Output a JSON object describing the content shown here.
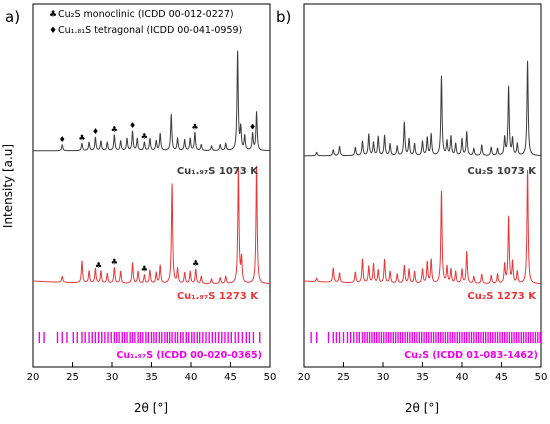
{
  "figure": {
    "ylabel": "Intensity [a.u]",
    "panel_a_label": "a)",
    "panel_b_label": "b)",
    "legend": [
      {
        "symbol": "♣",
        "text": "Cu₂S monoclinic (ICDD 00-012-0227)"
      },
      {
        "symbol": "♦",
        "text": "Cu₁.₈₁S tetragonal (ICDD 00-041-0959)"
      }
    ]
  },
  "colors": {
    "gray": "#3c3c3c",
    "red": "#e8373a",
    "magenta": "#ee00ee",
    "axis": "#000000"
  },
  "chart_data": [
    {
      "type": "line",
      "panel": "a",
      "xlabel": "2θ [°]",
      "ylabel": "Intensity [a.u]",
      "xlim": [
        20,
        50
      ],
      "xticks": [
        20,
        25,
        30,
        35,
        40,
        45,
        50
      ],
      "grid": false,
      "series": [
        {
          "name": "Cu₁.₉₇S 1073 K",
          "color": "#3c3c3c",
          "peaks": [
            [
              23.7,
              0.05
            ],
            [
              26.2,
              0.06
            ],
            [
              27.1,
              0.07
            ],
            [
              27.9,
              0.11
            ],
            [
              28.6,
              0.08
            ],
            [
              29.4,
              0.07
            ],
            [
              30.3,
              0.13
            ],
            [
              31.1,
              0.08
            ],
            [
              31.9,
              0.1
            ],
            [
              32.6,
              0.16
            ],
            [
              33.2,
              0.1
            ],
            [
              34.1,
              0.07
            ],
            [
              34.8,
              0.1
            ],
            [
              35.6,
              0.08
            ],
            [
              36.1,
              0.14
            ],
            [
              37.5,
              0.3
            ],
            [
              38.3,
              0.1
            ],
            [
              39.2,
              0.09
            ],
            [
              39.9,
              0.1
            ],
            [
              40.5,
              0.15
            ],
            [
              41.3,
              0.05
            ],
            [
              42.6,
              0.04
            ],
            [
              43.7,
              0.05
            ],
            [
              44.4,
              0.06
            ],
            [
              45.9,
              0.82
            ],
            [
              46.3,
              0.18
            ],
            [
              46.8,
              0.12
            ],
            [
              47.8,
              0.14
            ],
            [
              48.3,
              0.32
            ]
          ]
        },
        {
          "name": "Cu₁.₉₇S 1273 K",
          "color": "#e8373a",
          "peaks": [
            [
              23.7,
              0.05
            ],
            [
              26.2,
              0.18
            ],
            [
              27.1,
              0.1
            ],
            [
              27.9,
              0.12
            ],
            [
              28.6,
              0.1
            ],
            [
              29.4,
              0.08
            ],
            [
              30.3,
              0.13
            ],
            [
              31.1,
              0.1
            ],
            [
              32.6,
              0.17
            ],
            [
              33.3,
              0.1
            ],
            [
              34.1,
              0.07
            ],
            [
              34.8,
              0.11
            ],
            [
              35.6,
              0.09
            ],
            [
              36.1,
              0.15
            ],
            [
              37.6,
              0.83
            ],
            [
              38.3,
              0.12
            ],
            [
              39.2,
              0.09
            ],
            [
              39.9,
              0.1
            ],
            [
              40.6,
              0.12
            ],
            [
              41.3,
              0.06
            ],
            [
              42.6,
              0.04
            ],
            [
              43.7,
              0.05
            ],
            [
              44.4,
              0.06
            ],
            [
              46.0,
              0.96
            ],
            [
              46.4,
              0.2
            ],
            [
              48.3,
              0.98
            ]
          ]
        }
      ],
      "reference": {
        "name": "Cu₁.₉₇S (ICDD 00-020-0365)",
        "color": "#ee00ee",
        "positions": [
          20.8,
          21.4,
          23.1,
          23.7,
          24.3,
          25.1,
          25.6,
          26.2,
          26.6,
          27.1,
          27.5,
          27.9,
          28.3,
          28.7,
          29.1,
          29.5,
          29.9,
          30.3,
          30.6,
          30.9,
          31.3,
          31.6,
          31.9,
          32.3,
          32.6,
          32.9,
          33.3,
          33.6,
          33.9,
          34.3,
          34.6,
          35.0,
          35.3,
          35.6,
          36.0,
          36.3,
          36.7,
          37.0,
          37.3,
          37.6,
          38.0,
          38.3,
          38.7,
          39.0,
          39.4,
          39.7,
          40.1,
          40.4,
          40.8,
          41.1,
          41.5,
          41.9,
          42.3,
          42.7,
          43.1,
          43.5,
          43.9,
          44.3,
          44.7,
          45.1,
          45.6,
          46.0,
          46.5,
          47.0,
          47.4,
          47.9,
          48.7
        ]
      },
      "markers": [
        {
          "symbol": "♦",
          "x": 23.7,
          "series": 0
        },
        {
          "symbol": "♣",
          "x": 26.2,
          "series": 0
        },
        {
          "symbol": "♦",
          "x": 27.9,
          "series": 0
        },
        {
          "symbol": "♣",
          "x": 30.3,
          "series": 0
        },
        {
          "symbol": "♦",
          "x": 32.6,
          "series": 0
        },
        {
          "symbol": "♣",
          "x": 34.1,
          "series": 0
        },
        {
          "symbol": "♣",
          "x": 40.5,
          "series": 0
        },
        {
          "symbol": "♦",
          "x": 47.8,
          "series": 0
        },
        {
          "symbol": "♣",
          "x": 28.3,
          "series": 1
        },
        {
          "symbol": "♣",
          "x": 30.3,
          "series": 1
        },
        {
          "symbol": "♣",
          "x": 34.1,
          "series": 1
        },
        {
          "symbol": "♣",
          "x": 40.6,
          "series": 1
        }
      ]
    },
    {
      "type": "line",
      "panel": "b",
      "xlabel": "2θ [°]",
      "xlim": [
        20,
        50
      ],
      "xticks": [
        20,
        25,
        30,
        35,
        40,
        45,
        50
      ],
      "grid": false,
      "series": [
        {
          "name": "Cu₂S 1073 K",
          "color": "#3c3c3c",
          "peaks": [
            [
              21.6,
              0.03
            ],
            [
              23.7,
              0.05
            ],
            [
              24.5,
              0.08
            ],
            [
              26.5,
              0.07
            ],
            [
              27.4,
              0.12
            ],
            [
              28.2,
              0.18
            ],
            [
              28.8,
              0.11
            ],
            [
              29.4,
              0.16
            ],
            [
              30.2,
              0.17
            ],
            [
              30.9,
              0.1
            ],
            [
              31.8,
              0.08
            ],
            [
              32.7,
              0.28
            ],
            [
              33.3,
              0.14
            ],
            [
              34.0,
              0.1
            ],
            [
              35.0,
              0.12
            ],
            [
              35.6,
              0.15
            ],
            [
              36.1,
              0.18
            ],
            [
              37.4,
              0.67
            ],
            [
              38.1,
              0.12
            ],
            [
              38.6,
              0.16
            ],
            [
              39.2,
              0.1
            ],
            [
              40.0,
              0.14
            ],
            [
              40.6,
              0.2
            ],
            [
              41.5,
              0.06
            ],
            [
              42.5,
              0.09
            ],
            [
              43.7,
              0.07
            ],
            [
              44.5,
              0.06
            ],
            [
              45.4,
              0.15
            ],
            [
              45.9,
              0.58
            ],
            [
              46.4,
              0.14
            ],
            [
              47.0,
              0.1
            ],
            [
              48.3,
              0.8
            ]
          ]
        },
        {
          "name": "Cu₂S 1273 K",
          "color": "#e8373a",
          "peaks": [
            [
              21.6,
              0.03
            ],
            [
              23.7,
              0.12
            ],
            [
              24.5,
              0.08
            ],
            [
              26.5,
              0.09
            ],
            [
              27.4,
              0.2
            ],
            [
              28.2,
              0.14
            ],
            [
              28.8,
              0.16
            ],
            [
              29.4,
              0.11
            ],
            [
              30.2,
              0.2
            ],
            [
              30.9,
              0.1
            ],
            [
              31.8,
              0.08
            ],
            [
              32.7,
              0.15
            ],
            [
              33.3,
              0.12
            ],
            [
              34.0,
              0.1
            ],
            [
              35.0,
              0.12
            ],
            [
              35.6,
              0.18
            ],
            [
              36.1,
              0.2
            ],
            [
              37.4,
              0.78
            ],
            [
              38.1,
              0.14
            ],
            [
              38.6,
              0.12
            ],
            [
              39.2,
              0.1
            ],
            [
              40.0,
              0.12
            ],
            [
              40.6,
              0.27
            ],
            [
              41.5,
              0.06
            ],
            [
              42.5,
              0.08
            ],
            [
              43.7,
              0.07
            ],
            [
              44.5,
              0.08
            ],
            [
              45.4,
              0.16
            ],
            [
              45.9,
              0.56
            ],
            [
              46.4,
              0.18
            ],
            [
              47.0,
              0.1
            ],
            [
              48.3,
              0.96
            ]
          ]
        }
      ],
      "reference": {
        "name": "Cu₂S (ICDD 01-083-1462)",
        "color": "#ee00ee",
        "positions": [
          20.9,
          21.6,
          23.1,
          23.7,
          24.1,
          24.5,
          25.0,
          25.5,
          25.9,
          26.3,
          26.7,
          27.0,
          27.4,
          27.7,
          28.0,
          28.3,
          28.6,
          28.9,
          29.2,
          29.5,
          29.8,
          30.1,
          30.4,
          30.7,
          31.0,
          31.3,
          31.6,
          31.9,
          32.2,
          32.5,
          32.8,
          33.1,
          33.4,
          33.7,
          34.0,
          34.3,
          34.6,
          34.9,
          35.2,
          35.5,
          35.8,
          36.1,
          36.4,
          36.7,
          37.0,
          37.3,
          37.6,
          37.9,
          38.2,
          38.5,
          38.8,
          39.1,
          39.4,
          39.7,
          40.0,
          40.3,
          40.6,
          40.9,
          41.2,
          41.5,
          41.8,
          42.1,
          42.4,
          42.7,
          43.0,
          43.3,
          43.6,
          43.9,
          44.2,
          44.5,
          44.8,
          45.1,
          45.4,
          45.7,
          46.0,
          46.3,
          46.6,
          46.9,
          47.2,
          47.5,
          47.8,
          48.1,
          48.4,
          48.7,
          49.0,
          49.3,
          49.6,
          49.9
        ]
      }
    }
  ]
}
